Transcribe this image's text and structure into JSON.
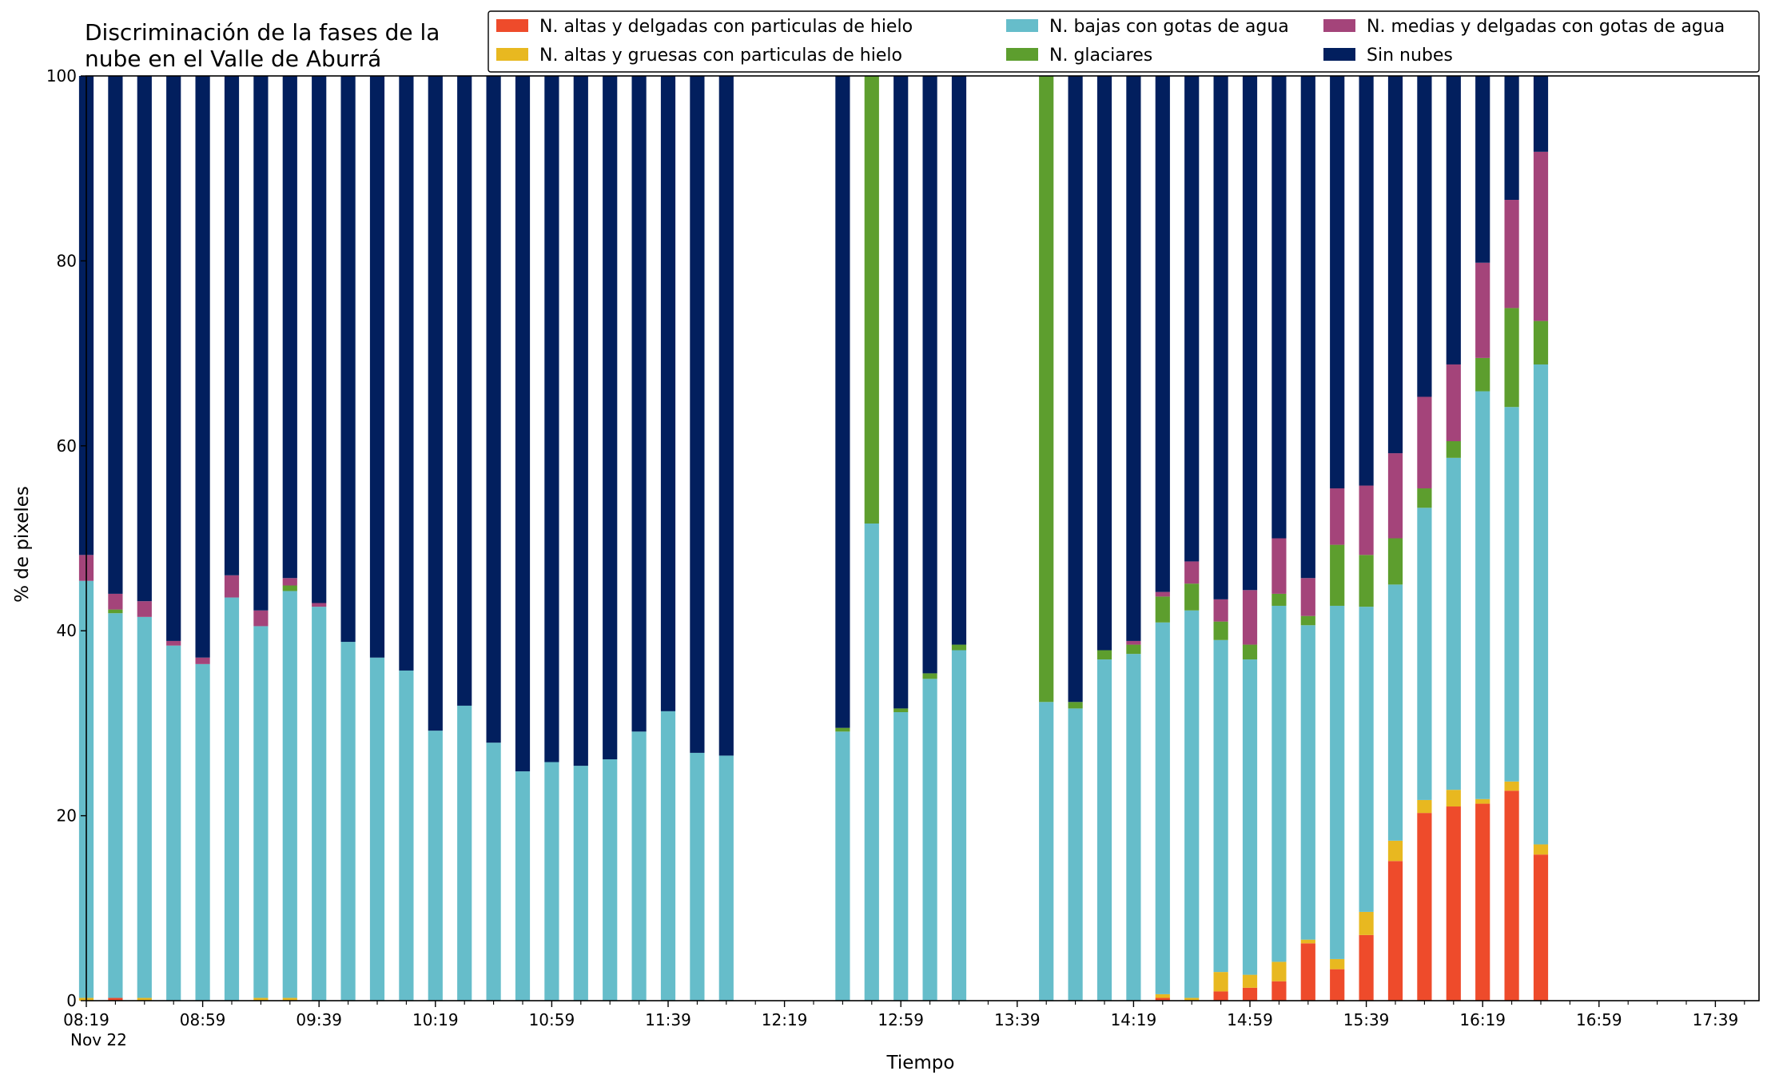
{
  "chart_data": {
    "type": "bar",
    "stacked": true,
    "title_lines": [
      "Discriminación de la fases de la",
      "nube en el Valle de Aburrá"
    ],
    "xlabel": "Tiempo",
    "ylabel": "% de pixeles",
    "ylim": [
      0,
      100
    ],
    "yticks": [
      0,
      20,
      40,
      60,
      80,
      100
    ],
    "xlim_minutes": [
      499,
      1074
    ],
    "xtick_minutes": [
      499,
      539,
      579,
      619,
      659,
      699,
      739,
      779,
      819,
      859,
      899,
      939,
      979,
      1019,
      1059
    ],
    "xtick_labels": [
      "08:19",
      "08:59",
      "09:39",
      "10:19",
      "10:59",
      "11:39",
      "12:19",
      "12:59",
      "13:39",
      "14:19",
      "14:59",
      "15:39",
      "16:19",
      "16:59",
      "17:39"
    ],
    "xtick_sublabel": "Nov 22",
    "minor_tick_minutes": [
      509,
      519,
      529,
      549,
      559,
      569,
      589,
      599,
      609,
      629,
      639,
      649,
      669,
      679,
      689,
      709,
      719,
      729,
      749,
      759,
      769,
      789,
      799,
      809,
      829,
      839,
      849,
      869,
      879,
      889,
      909,
      919,
      929,
      949,
      959,
      969,
      989,
      999,
      1009,
      1029,
      1039,
      1049,
      1069
    ],
    "bar_width_minutes": 5,
    "legend_position": "top-right",
    "colors": {
      "altas_delgadas": "#ee4b2b",
      "altas_gruesas": "#e8b820",
      "bajas": "#66bdca",
      "glaciares": "#5d9e2e",
      "medias": "#a4447a",
      "sin_nubes": "#021f5e"
    },
    "series": [
      {
        "key": "altas_delgadas",
        "name": "N. altas y delgadas con particulas de hielo"
      },
      {
        "key": "altas_gruesas",
        "name": "N. altas y gruesas con particulas de hielo"
      },
      {
        "key": "bajas",
        "name": "N. bajas con gotas de agua"
      },
      {
        "key": "glaciares",
        "name": "N. glaciares"
      },
      {
        "key": "medias",
        "name": "N. medias y delgadas con gotas de agua"
      },
      {
        "key": "sin_nubes",
        "name": "Sin nubes"
      }
    ],
    "bars": [
      {
        "t": "08:19",
        "altas_delgadas": 0.0,
        "altas_gruesas": 0.3,
        "bajas": 45.1,
        "glaciares": 0.0,
        "medias": 2.8,
        "sin_nubes": 51.8
      },
      {
        "t": "08:29",
        "altas_delgadas": 0.3,
        "altas_gruesas": 0.0,
        "bajas": 41.6,
        "glaciares": 0.4,
        "medias": 1.7,
        "sin_nubes": 56.0
      },
      {
        "t": "08:39",
        "altas_delgadas": 0.0,
        "altas_gruesas": 0.3,
        "bajas": 41.2,
        "glaciares": 0.0,
        "medias": 1.7,
        "sin_nubes": 56.8
      },
      {
        "t": "08:49",
        "altas_delgadas": 0.0,
        "altas_gruesas": 0.0,
        "bajas": 38.4,
        "glaciares": 0.0,
        "medias": 0.5,
        "sin_nubes": 61.1
      },
      {
        "t": "08:59",
        "altas_delgadas": 0.0,
        "altas_gruesas": 0.0,
        "bajas": 36.4,
        "glaciares": 0.0,
        "medias": 0.7,
        "sin_nubes": 62.9
      },
      {
        "t": "09:09",
        "altas_delgadas": 0.0,
        "altas_gruesas": 0.0,
        "bajas": 43.6,
        "glaciares": 0.0,
        "medias": 2.4,
        "sin_nubes": 54.0
      },
      {
        "t": "09:19",
        "altas_delgadas": 0.0,
        "altas_gruesas": 0.3,
        "bajas": 40.2,
        "glaciares": 0.0,
        "medias": 1.7,
        "sin_nubes": 57.8
      },
      {
        "t": "09:29",
        "altas_delgadas": 0.0,
        "altas_gruesas": 0.3,
        "bajas": 44.0,
        "glaciares": 0.6,
        "medias": 0.8,
        "sin_nubes": 54.3
      },
      {
        "t": "09:39",
        "altas_delgadas": 0.0,
        "altas_gruesas": 0.0,
        "bajas": 42.6,
        "glaciares": 0.0,
        "medias": 0.4,
        "sin_nubes": 57.0
      },
      {
        "t": "09:49",
        "altas_delgadas": 0.0,
        "altas_gruesas": 0.0,
        "bajas": 38.8,
        "glaciares": 0.0,
        "medias": 0.0,
        "sin_nubes": 61.2
      },
      {
        "t": "09:59",
        "altas_delgadas": 0.0,
        "altas_gruesas": 0.0,
        "bajas": 37.1,
        "glaciares": 0.0,
        "medias": 0.0,
        "sin_nubes": 62.9
      },
      {
        "t": "10:09",
        "altas_delgadas": 0.0,
        "altas_gruesas": 0.0,
        "bajas": 35.7,
        "glaciares": 0.0,
        "medias": 0.0,
        "sin_nubes": 64.3
      },
      {
        "t": "10:19",
        "altas_delgadas": 0.0,
        "altas_gruesas": 0.0,
        "bajas": 29.2,
        "glaciares": 0.0,
        "medias": 0.0,
        "sin_nubes": 70.8
      },
      {
        "t": "10:29",
        "altas_delgadas": 0.0,
        "altas_gruesas": 0.0,
        "bajas": 31.9,
        "glaciares": 0.0,
        "medias": 0.0,
        "sin_nubes": 68.1
      },
      {
        "t": "10:39",
        "altas_delgadas": 0.0,
        "altas_gruesas": 0.0,
        "bajas": 27.9,
        "glaciares": 0.0,
        "medias": 0.0,
        "sin_nubes": 72.1
      },
      {
        "t": "10:49",
        "altas_delgadas": 0.0,
        "altas_gruesas": 0.0,
        "bajas": 24.8,
        "glaciares": 0.0,
        "medias": 0.0,
        "sin_nubes": 75.2
      },
      {
        "t": "10:59",
        "altas_delgadas": 0.0,
        "altas_gruesas": 0.0,
        "bajas": 25.8,
        "glaciares": 0.0,
        "medias": 0.0,
        "sin_nubes": 74.2
      },
      {
        "t": "11:09",
        "altas_delgadas": 0.0,
        "altas_gruesas": 0.0,
        "bajas": 25.4,
        "glaciares": 0.0,
        "medias": 0.0,
        "sin_nubes": 74.6
      },
      {
        "t": "11:19",
        "altas_delgadas": 0.0,
        "altas_gruesas": 0.0,
        "bajas": 26.1,
        "glaciares": 0.0,
        "medias": 0.0,
        "sin_nubes": 73.9
      },
      {
        "t": "11:29",
        "altas_delgadas": 0.0,
        "altas_gruesas": 0.0,
        "bajas": 29.1,
        "glaciares": 0.0,
        "medias": 0.0,
        "sin_nubes": 70.9
      },
      {
        "t": "11:39",
        "altas_delgadas": 0.0,
        "altas_gruesas": 0.0,
        "bajas": 31.3,
        "glaciares": 0.0,
        "medias": 0.0,
        "sin_nubes": 68.7
      },
      {
        "t": "11:49",
        "altas_delgadas": 0.0,
        "altas_gruesas": 0.0,
        "bajas": 26.8,
        "glaciares": 0.0,
        "medias": 0.0,
        "sin_nubes": 73.2
      },
      {
        "t": "11:59",
        "altas_delgadas": 0.0,
        "altas_gruesas": 0.0,
        "bajas": 26.5,
        "glaciares": 0.0,
        "medias": 0.0,
        "sin_nubes": 73.5
      },
      {
        "t": "12:39",
        "altas_delgadas": 0.0,
        "altas_gruesas": 0.0,
        "bajas": 29.1,
        "glaciares": 0.4,
        "medias": 0.0,
        "sin_nubes": 70.5
      },
      {
        "t": "12:49",
        "altas_delgadas": 0.0,
        "altas_gruesas": 0.0,
        "bajas": 51.6,
        "glaciares": 48.4,
        "medias": 0.0,
        "sin_nubes": 0.0
      },
      {
        "t": "12:59",
        "altas_delgadas": 0.0,
        "altas_gruesas": 0.0,
        "bajas": 31.2,
        "glaciares": 0.4,
        "medias": 0.0,
        "sin_nubes": 68.4
      },
      {
        "t": "13:09",
        "altas_delgadas": 0.0,
        "altas_gruesas": 0.0,
        "bajas": 34.8,
        "glaciares": 0.6,
        "medias": 0.0,
        "sin_nubes": 64.6
      },
      {
        "t": "13:19",
        "altas_delgadas": 0.0,
        "altas_gruesas": 0.0,
        "bajas": 37.9,
        "glaciares": 0.6,
        "medias": 0.0,
        "sin_nubes": 61.5
      },
      {
        "t": "13:49",
        "altas_delgadas": 0.0,
        "altas_gruesas": 0.0,
        "bajas": 32.3,
        "glaciares": 67.7,
        "medias": 0.0,
        "sin_nubes": 0.0
      },
      {
        "t": "13:59",
        "altas_delgadas": 0.0,
        "altas_gruesas": 0.0,
        "bajas": 31.6,
        "glaciares": 0.7,
        "medias": 0.0,
        "sin_nubes": 67.7
      },
      {
        "t": "14:09",
        "altas_delgadas": 0.0,
        "altas_gruesas": 0.0,
        "bajas": 36.9,
        "glaciares": 1.0,
        "medias": 0.0,
        "sin_nubes": 62.1
      },
      {
        "t": "14:19",
        "altas_delgadas": 0.0,
        "altas_gruesas": 0.0,
        "bajas": 37.5,
        "glaciares": 1.0,
        "medias": 0.4,
        "sin_nubes": 61.1
      },
      {
        "t": "14:29",
        "altas_delgadas": 0.3,
        "altas_gruesas": 0.4,
        "bajas": 40.2,
        "glaciares": 2.8,
        "medias": 0.5,
        "sin_nubes": 55.8
      },
      {
        "t": "14:39",
        "altas_delgadas": 0.0,
        "altas_gruesas": 0.3,
        "bajas": 41.9,
        "glaciares": 2.9,
        "medias": 2.4,
        "sin_nubes": 52.5
      },
      {
        "t": "14:49",
        "altas_delgadas": 1.0,
        "altas_gruesas": 2.1,
        "bajas": 35.9,
        "glaciares": 2.0,
        "medias": 2.4,
        "sin_nubes": 56.6
      },
      {
        "t": "14:59",
        "altas_delgadas": 1.4,
        "altas_gruesas": 1.4,
        "bajas": 34.1,
        "glaciares": 1.6,
        "medias": 5.9,
        "sin_nubes": 55.6
      },
      {
        "t": "15:09",
        "altas_delgadas": 2.1,
        "altas_gruesas": 2.1,
        "bajas": 38.5,
        "glaciares": 1.3,
        "medias": 6.0,
        "sin_nubes": 50.0
      },
      {
        "t": "15:19",
        "altas_delgadas": 6.2,
        "altas_gruesas": 0.4,
        "bajas": 34.0,
        "glaciares": 1.0,
        "medias": 4.1,
        "sin_nubes": 54.3
      },
      {
        "t": "15:29",
        "altas_delgadas": 3.4,
        "altas_gruesas": 1.1,
        "bajas": 38.2,
        "glaciares": 6.6,
        "medias": 6.1,
        "sin_nubes": 44.6
      },
      {
        "t": "15:39",
        "altas_delgadas": 7.1,
        "altas_gruesas": 2.5,
        "bajas": 33.0,
        "glaciares": 5.6,
        "medias": 7.5,
        "sin_nubes": 44.3
      },
      {
        "t": "15:49",
        "altas_delgadas": 15.1,
        "altas_gruesas": 2.2,
        "bajas": 27.7,
        "glaciares": 5.0,
        "medias": 9.2,
        "sin_nubes": 40.8
      },
      {
        "t": "15:59",
        "altas_delgadas": 20.3,
        "altas_gruesas": 1.4,
        "bajas": 31.6,
        "glaciares": 2.1,
        "medias": 9.9,
        "sin_nubes": 34.7
      },
      {
        "t": "16:09",
        "altas_delgadas": 21.0,
        "altas_gruesas": 1.8,
        "bajas": 35.9,
        "glaciares": 1.8,
        "medias": 8.3,
        "sin_nubes": 31.2
      },
      {
        "t": "16:19",
        "altas_delgadas": 21.3,
        "altas_gruesas": 0.5,
        "bajas": 44.1,
        "glaciares": 3.6,
        "medias": 10.3,
        "sin_nubes": 20.2
      },
      {
        "t": "16:29",
        "altas_delgadas": 22.7,
        "altas_gruesas": 1.0,
        "bajas": 40.5,
        "glaciares": 10.7,
        "medias": 11.7,
        "sin_nubes": 13.4
      },
      {
        "t": "16:39",
        "altas_delgadas": 15.8,
        "altas_gruesas": 1.1,
        "bajas": 51.9,
        "glaciares": 4.7,
        "medias": 18.3,
        "sin_nubes": 8.2
      }
    ]
  }
}
